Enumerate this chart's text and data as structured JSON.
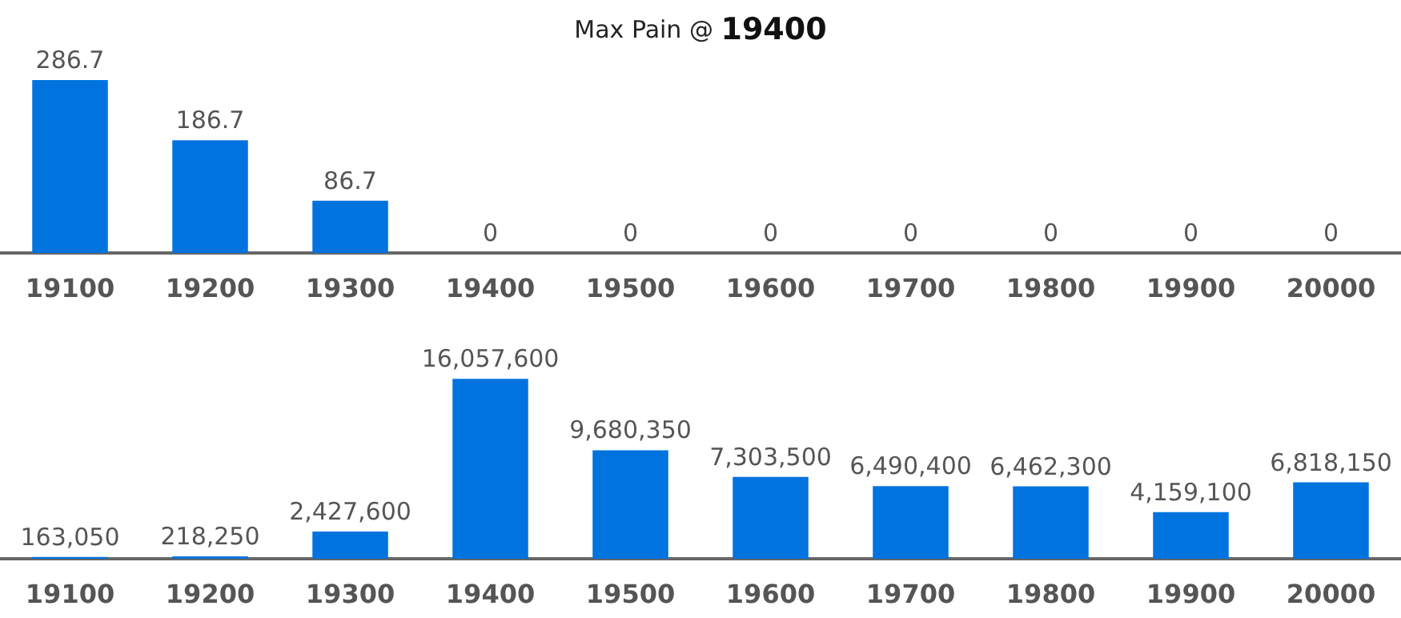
{
  "chart_data": [
    {
      "type": "bar",
      "title": "Max Pain @ 19400",
      "categories": [
        "19100",
        "19200",
        "19300",
        "19400",
        "19500",
        "19600",
        "19700",
        "19800",
        "19900",
        "20000"
      ],
      "values": [
        286.7,
        186.7,
        86.7,
        0,
        0,
        0,
        0,
        0,
        0,
        0
      ],
      "color": "#0073de",
      "data_labels": true,
      "tick_labels": "x"
    },
    {
      "type": "bar",
      "categories": [
        "19100",
        "19200",
        "19300",
        "19400",
        "19500",
        "19600",
        "19700",
        "19800",
        "19900",
        "20000"
      ],
      "values": [
        163050,
        218250,
        2427600,
        16057600,
        9680350,
        7303500,
        6490400,
        6462300,
        4159100,
        6818150
      ],
      "value_labels": [
        "163,050",
        "218,250",
        "2,427,600",
        "16,057,600",
        "9,680,350",
        "7,303,500",
        "6,490,400",
        "6,462,300",
        "4,159,100",
        "6,818,150"
      ],
      "color": "#0073de",
      "tick_labels": "x"
    }
  ]
}
